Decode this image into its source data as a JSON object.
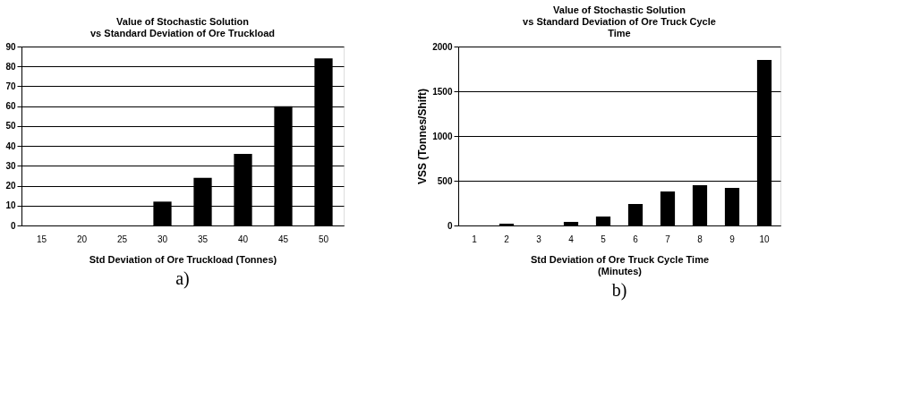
{
  "chart_data": [
    {
      "type": "bar",
      "title": [
        "Value of Stochastic Solution",
        "vs Standard Deviation of Ore Truckload"
      ],
      "xlabel": "Std Deviation of Ore Truckload (Tonnes)",
      "categories": [
        "15",
        "20",
        "25",
        "30",
        "35",
        "40",
        "45",
        "50"
      ],
      "values": [
        0,
        0,
        0,
        12,
        24,
        36,
        60,
        84
      ],
      "color": "#000000",
      "ylim": [
        0,
        90
      ],
      "yticks": [
        0,
        10,
        20,
        30,
        40,
        50,
        60,
        70,
        80,
        90
      ],
      "grid": "y",
      "annotations": [
        "a)"
      ]
    },
    {
      "type": "bar",
      "title": [
        "Value of Stochastic Solution",
        "vs Standard Deviation of Ore Truck Cycle",
        "Time"
      ],
      "xlabel": [
        "Std Deviation of Ore Truck Cycle Time",
        "(Minutes)"
      ],
      "ylabel": "VSS (Tonnes/Shift)",
      "categories": [
        "1",
        "2",
        "3",
        "4",
        "5",
        "6",
        "7",
        "8",
        "9",
        "10"
      ],
      "values": [
        0,
        20,
        0,
        40,
        100,
        240,
        380,
        450,
        420,
        1850
      ],
      "color": "#000000",
      "ylim": [
        0,
        2000
      ],
      "yticks": [
        0,
        500,
        1000,
        1500,
        2000
      ],
      "grid": "y",
      "annotations": [
        "b)"
      ]
    }
  ]
}
